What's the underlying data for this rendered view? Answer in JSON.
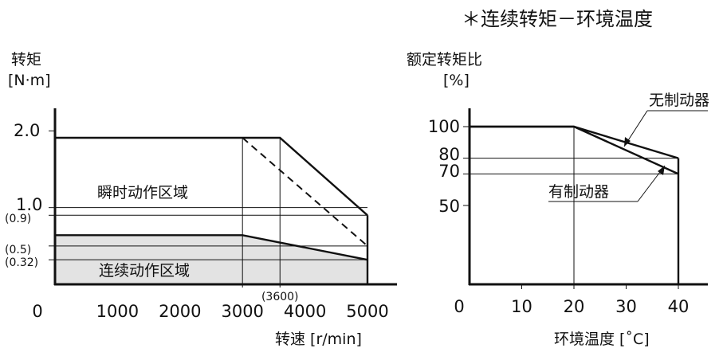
{
  "page_title": "＊连续转矩－环境温度",
  "chart_data": [
    {
      "type": "area",
      "ylabel_line1": "转矩",
      "ylabel_line2": "[N·m]",
      "xlabel": "转速 [r/min]",
      "xlim": [
        0,
        5000
      ],
      "ylim": [
        0,
        2.2
      ],
      "x_ticks": [
        "0",
        "1000",
        "2000",
        "3000",
        "4000",
        "5000"
      ],
      "x_tick_values": [
        0,
        1000,
        2000,
        3000,
        4000,
        5000
      ],
      "x_extra_tick": {
        "label": "(3600)",
        "value": 3600
      },
      "y_ticks": [
        {
          "label": "2.0",
          "value": 2.0
        },
        {
          "label": "1.0",
          "value": 1.0
        },
        {
          "label": "(0.9)",
          "value": 0.9
        },
        {
          "label": "(0.5)",
          "value": 0.5
        },
        {
          "label": "(0.32)",
          "value": 0.32
        }
      ],
      "series": [
        {
          "name": "瞬时动作区域",
          "x": [
            0,
            3600,
            5000
          ],
          "y": [
            1.91,
            1.91,
            0.9
          ]
        },
        {
          "name": "连续动作区域",
          "x": [
            0,
            3000,
            5000
          ],
          "y": [
            0.64,
            0.64,
            0.32
          ]
        },
        {
          "name": "",
          "style": "dashed",
          "x": [
            3000,
            5000
          ],
          "y": [
            1.91,
            0.5
          ]
        }
      ],
      "grid": false
    },
    {
      "type": "line",
      "ylabel_line1": "额定转矩比",
      "ylabel_line2": "[%]",
      "xlabel": "环境温度 [˚C]",
      "xlim": [
        0,
        40
      ],
      "ylim": [
        0,
        120
      ],
      "x_ticks": [
        "0",
        "10",
        "20",
        "30",
        "40"
      ],
      "x_tick_values": [
        0,
        10,
        20,
        30,
        40
      ],
      "y_ticks": [
        {
          "label": "100",
          "value": 100
        },
        {
          "label": "80",
          "value": 80
        },
        {
          "label": "70",
          "value": 70
        },
        {
          "label": "50",
          "value": 50
        }
      ],
      "series": [
        {
          "name": "无制动器",
          "x": [
            0,
            20,
            40
          ],
          "y": [
            100,
            100,
            80
          ]
        },
        {
          "name": "有制动器",
          "x": [
            0,
            20,
            40
          ],
          "y": [
            100,
            100,
            70
          ]
        }
      ],
      "grid": false
    }
  ]
}
